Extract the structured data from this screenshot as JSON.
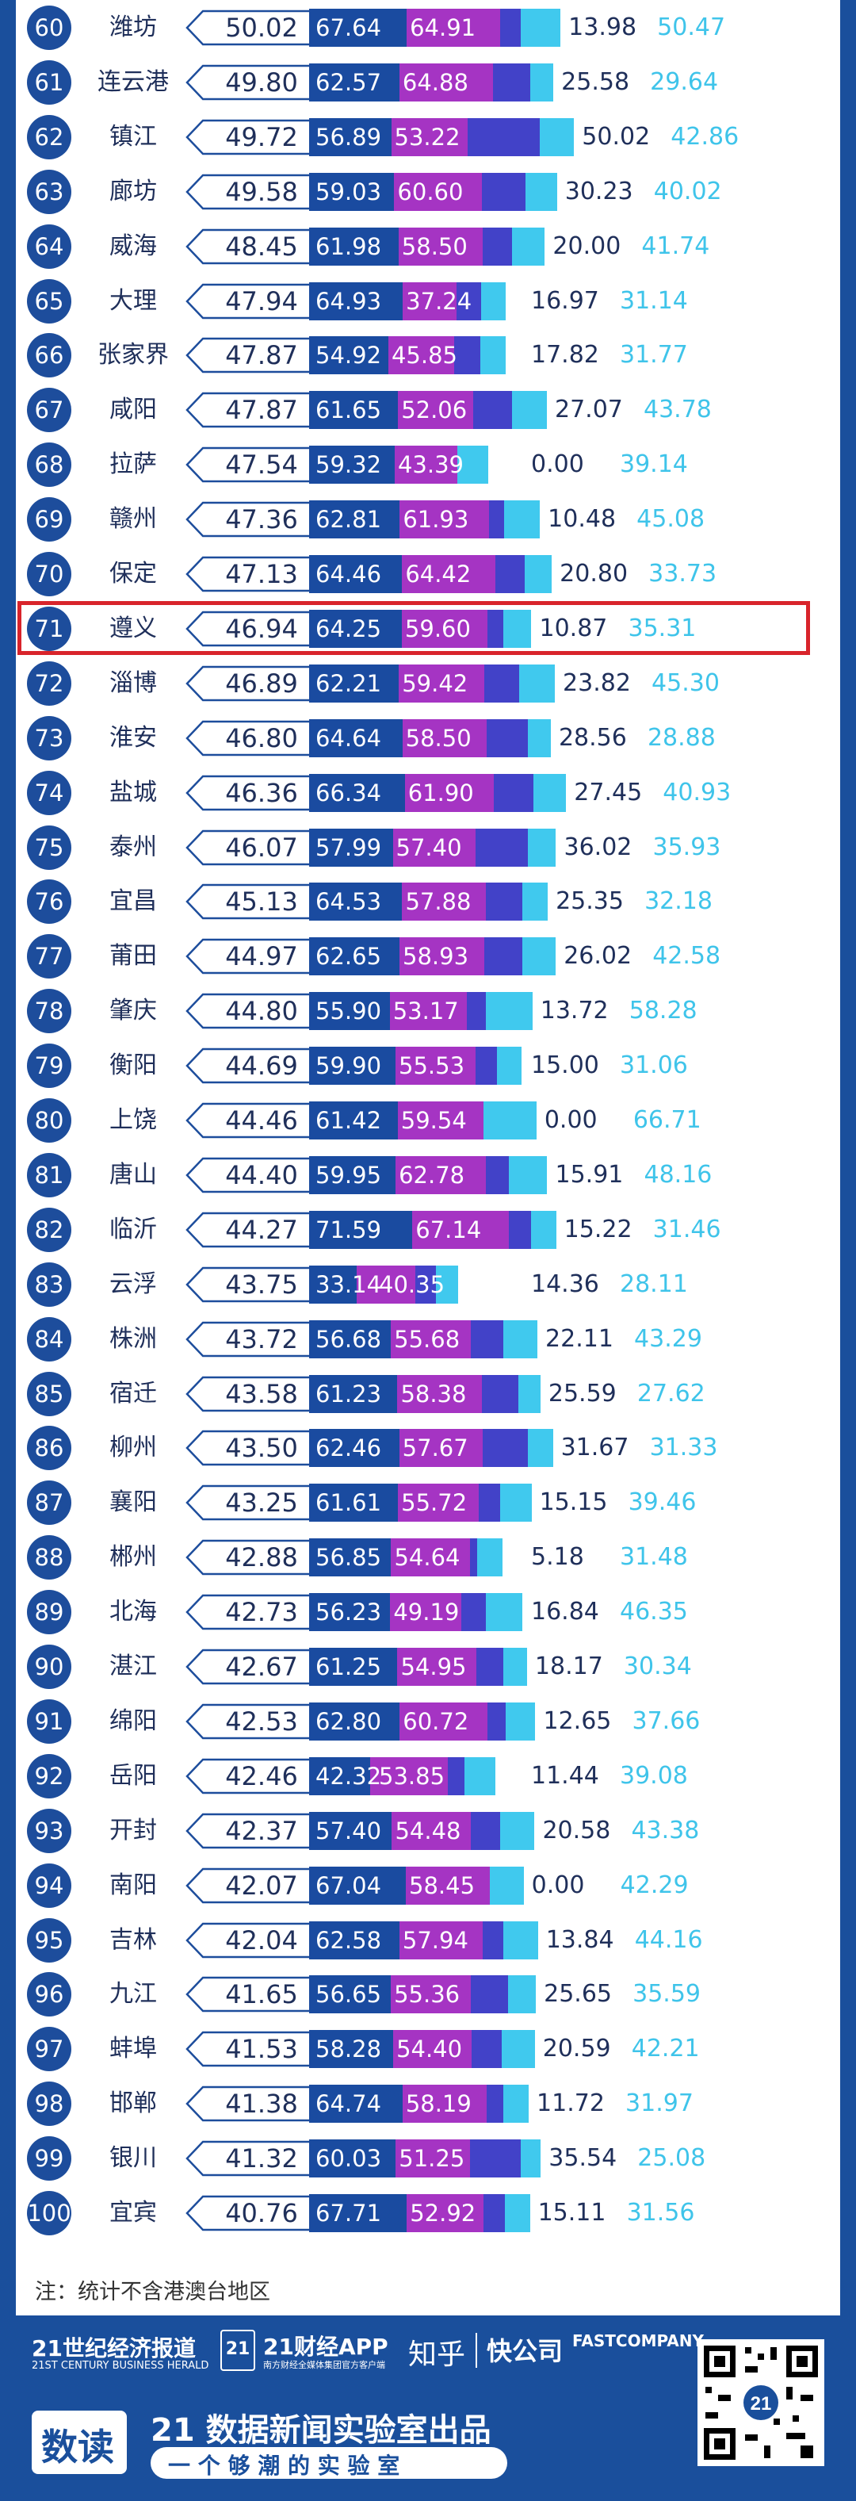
{
  "chart_data": {
    "type": "table",
    "columns": [
      "rank",
      "city",
      "score",
      "sub1",
      "sub2",
      "sub3",
      "sub4"
    ],
    "highlight_rank": 71,
    "rows": [
      {
        "rank": "60",
        "city": "潍坊",
        "score": "50.02",
        "v1": "67.64",
        "v2": "64.91",
        "v3": "13.98",
        "v4": "50.47"
      },
      {
        "rank": "61",
        "city": "连云港",
        "score": "49.80",
        "v1": "62.57",
        "v2": "64.88",
        "v3": "25.58",
        "v4": "29.64"
      },
      {
        "rank": "62",
        "city": "镇江",
        "score": "49.72",
        "v1": "56.89",
        "v2": "53.22",
        "v3": "50.02",
        "v4": "42.86"
      },
      {
        "rank": "63",
        "city": "廊坊",
        "score": "49.58",
        "v1": "59.03",
        "v2": "60.60",
        "v3": "30.23",
        "v4": "40.02"
      },
      {
        "rank": "64",
        "city": "威海",
        "score": "48.45",
        "v1": "61.98",
        "v2": "58.50",
        "v3": "20.00",
        "v4": "41.74"
      },
      {
        "rank": "65",
        "city": "大理",
        "score": "47.94",
        "v1": "64.93",
        "v2": "37.24",
        "v3": "16.97",
        "v4": "31.14"
      },
      {
        "rank": "66",
        "city": "张家界",
        "score": "47.87",
        "v1": "54.92",
        "v2": "45.85",
        "v3": "17.82",
        "v4": "31.77"
      },
      {
        "rank": "67",
        "city": "咸阳",
        "score": "47.87",
        "v1": "61.65",
        "v2": "52.06",
        "v3": "27.07",
        "v4": "43.78"
      },
      {
        "rank": "68",
        "city": "拉萨",
        "score": "47.54",
        "v1": "59.32",
        "v2": "43.39",
        "v3": "0.00",
        "v4": "39.14"
      },
      {
        "rank": "69",
        "city": "赣州",
        "score": "47.36",
        "v1": "62.81",
        "v2": "61.93",
        "v3": "10.48",
        "v4": "45.08"
      },
      {
        "rank": "70",
        "city": "保定",
        "score": "47.13",
        "v1": "64.46",
        "v2": "64.42",
        "v3": "20.80",
        "v4": "33.73"
      },
      {
        "rank": "71",
        "city": "遵义",
        "score": "46.94",
        "v1": "64.25",
        "v2": "59.60",
        "v3": "10.87",
        "v4": "35.31"
      },
      {
        "rank": "72",
        "city": "淄博",
        "score": "46.89",
        "v1": "62.21",
        "v2": "59.42",
        "v3": "23.82",
        "v4": "45.30"
      },
      {
        "rank": "73",
        "city": "淮安",
        "score": "46.80",
        "v1": "64.64",
        "v2": "58.50",
        "v3": "28.56",
        "v4": "28.88"
      },
      {
        "rank": "74",
        "city": "盐城",
        "score": "46.36",
        "v1": "66.34",
        "v2": "61.90",
        "v3": "27.45",
        "v4": "40.93"
      },
      {
        "rank": "75",
        "city": "泰州",
        "score": "46.07",
        "v1": "57.99",
        "v2": "57.40",
        "v3": "36.02",
        "v4": "35.93"
      },
      {
        "rank": "76",
        "city": "宜昌",
        "score": "45.13",
        "v1": "64.53",
        "v2": "57.88",
        "v3": "25.35",
        "v4": "32.18"
      },
      {
        "rank": "77",
        "city": "莆田",
        "score": "44.97",
        "v1": "62.65",
        "v2": "58.93",
        "v3": "26.02",
        "v4": "42.58"
      },
      {
        "rank": "78",
        "city": "肇庆",
        "score": "44.80",
        "v1": "55.90",
        "v2": "53.17",
        "v3": "13.72",
        "v4": "58.28"
      },
      {
        "rank": "79",
        "city": "衡阳",
        "score": "44.69",
        "v1": "59.90",
        "v2": "55.53",
        "v3": "15.00",
        "v4": "31.06"
      },
      {
        "rank": "80",
        "city": "上饶",
        "score": "44.46",
        "v1": "61.42",
        "v2": "59.54",
        "v3": "0.00",
        "v4": "66.71"
      },
      {
        "rank": "81",
        "city": "唐山",
        "score": "44.40",
        "v1": "59.95",
        "v2": "62.78",
        "v3": "15.91",
        "v4": "48.16"
      },
      {
        "rank": "82",
        "city": "临沂",
        "score": "44.27",
        "v1": "71.59",
        "v2": "67.14",
        "v3": "15.22",
        "v4": "31.46"
      },
      {
        "rank": "83",
        "city": "云浮",
        "score": "43.75",
        "v1": "33.14",
        "v2": "40.35",
        "v3": "14.36",
        "v4": "28.11"
      },
      {
        "rank": "84",
        "city": "株洲",
        "score": "43.72",
        "v1": "56.68",
        "v2": "55.68",
        "v3": "22.11",
        "v4": "43.29"
      },
      {
        "rank": "85",
        "city": "宿迁",
        "score": "43.58",
        "v1": "61.23",
        "v2": "58.38",
        "v3": "25.59",
        "v4": "27.62"
      },
      {
        "rank": "86",
        "city": "柳州",
        "score": "43.50",
        "v1": "62.46",
        "v2": "57.67",
        "v3": "31.67",
        "v4": "31.33"
      },
      {
        "rank": "87",
        "city": "襄阳",
        "score": "43.25",
        "v1": "61.61",
        "v2": "55.72",
        "v3": "15.15",
        "v4": "39.46"
      },
      {
        "rank": "88",
        "city": "郴州",
        "score": "42.88",
        "v1": "56.85",
        "v2": "54.64",
        "v3": "5.18",
        "v4": "31.48"
      },
      {
        "rank": "89",
        "city": "北海",
        "score": "42.73",
        "v1": "56.23",
        "v2": "49.19",
        "v3": "16.84",
        "v4": "46.35"
      },
      {
        "rank": "90",
        "city": "湛江",
        "score": "42.67",
        "v1": "61.25",
        "v2": "54.95",
        "v3": "18.17",
        "v4": "30.34"
      },
      {
        "rank": "91",
        "city": "绵阳",
        "score": "42.53",
        "v1": "62.80",
        "v2": "60.72",
        "v3": "12.65",
        "v4": "37.66"
      },
      {
        "rank": "92",
        "city": "岳阳",
        "score": "42.46",
        "v1": "42.32",
        "v2": "53.85",
        "v3": "11.44",
        "v4": "39.08"
      },
      {
        "rank": "93",
        "city": "开封",
        "score": "42.37",
        "v1": "57.40",
        "v2": "54.48",
        "v3": "20.58",
        "v4": "43.38"
      },
      {
        "rank": "94",
        "city": "南阳",
        "score": "42.07",
        "v1": "67.04",
        "v2": "58.45",
        "v3": "0.00",
        "v4": "42.29"
      },
      {
        "rank": "95",
        "city": "吉林",
        "score": "42.04",
        "v1": "62.58",
        "v2": "57.94",
        "v3": "13.84",
        "v4": "44.16"
      },
      {
        "rank": "96",
        "city": "九江",
        "score": "41.65",
        "v1": "56.65",
        "v2": "55.36",
        "v3": "25.65",
        "v4": "35.59"
      },
      {
        "rank": "97",
        "city": "蚌埠",
        "score": "41.53",
        "v1": "58.28",
        "v2": "54.40",
        "v3": "20.59",
        "v4": "42.21"
      },
      {
        "rank": "98",
        "city": "邯郸",
        "score": "41.38",
        "v1": "64.74",
        "v2": "58.19",
        "v3": "11.72",
        "v4": "31.97"
      },
      {
        "rank": "99",
        "city": "银川",
        "score": "41.32",
        "v1": "60.03",
        "v2": "51.25",
        "v3": "35.54",
        "v4": "25.08"
      },
      {
        "rank": "100",
        "city": "宜宾",
        "score": "40.76",
        "v1": "67.71",
        "v2": "52.92",
        "v3": "15.11",
        "v4": "31.56"
      }
    ]
  },
  "note": "注：统计不含港澳台地区",
  "colors": {
    "background": "#1a4f9c",
    "rank_circle": "#1d4d9c",
    "bar1": "#1a4ba0",
    "bar2": "#a534c3",
    "bar3": "#4242c8",
    "bar4": "#40c9ee",
    "highlight": "#d8242b",
    "value4_text": "#3fc4ea"
  },
  "footer": {
    "brand_cn": "21世纪经济报道",
    "brand_en": "21ST CENTURY BUSINESS HERALD",
    "app_name": "21财经APP",
    "app_sub": "南方财经全媒体集团官方客户端",
    "zhihu": "知乎",
    "kuaigongsi": "快公司",
    "fastcompany": "FASTCOMPANY",
    "lab_badge": "数读",
    "lab_title": "21 数据新闻实验室出品",
    "lab_slogan": "一 个 够 潮 的 实 验 室",
    "qr_label": "21"
  }
}
